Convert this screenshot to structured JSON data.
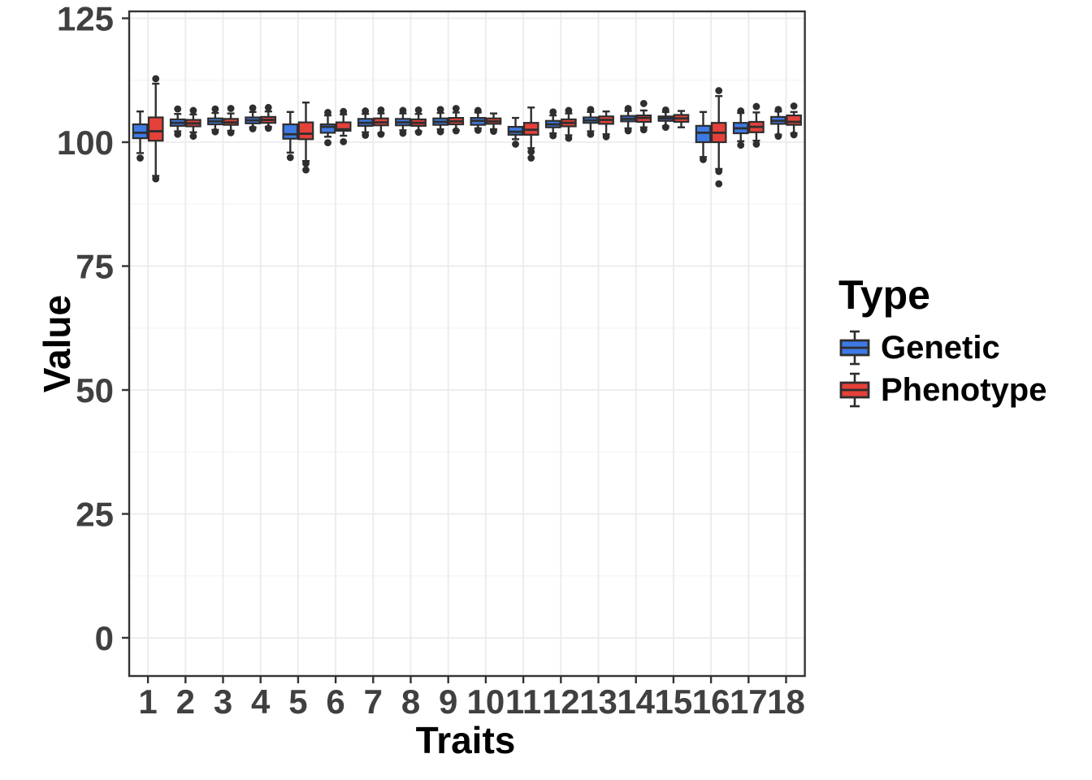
{
  "chart_data": {
    "type": "boxplot",
    "title": "",
    "xlabel": "Traits",
    "ylabel": "Value",
    "categories": [
      "1",
      "2",
      "3",
      "4",
      "5",
      "6",
      "7",
      "8",
      "9",
      "10",
      "11",
      "12",
      "13",
      "14",
      "15",
      "16",
      "17",
      "18"
    ],
    "yticks": [
      "0",
      "25",
      "50",
      "75",
      "100",
      "125"
    ],
    "ytick_values": [
      0,
      25,
      50,
      75,
      100,
      125
    ],
    "ylim": [
      -7,
      128
    ],
    "grid": "major-and-minor",
    "legend": {
      "title": "Type",
      "position": "right",
      "entries": [
        {
          "label": "Genetic",
          "color": "#3E7AE4"
        },
        {
          "label": "Phenotype",
          "color": "#E4413A"
        }
      ]
    },
    "colors": {
      "genetic_fill": "#3E7AE4",
      "phenotype_fill": "#E4413A",
      "box_border": "#2E2E2E",
      "outlier": "#2E2E2E",
      "grid_major": "#EBEBEB",
      "grid_minor": "#F4F4F4",
      "panel_border": "#333333",
      "tick_label": "#404040",
      "panel_bg": "#FFFFFF"
    },
    "series": [
      {
        "name": "Genetic",
        "boxes": [
          {
            "whislo": 97.8,
            "q1": 100.8,
            "med": 101.9,
            "q3": 103.6,
            "whishi": 106.2,
            "outliers": [
              96.8
            ]
          },
          {
            "whislo": 102.2,
            "q1": 103.3,
            "med": 103.9,
            "q3": 104.6,
            "whishi": 105.7,
            "outliers": [
              106.7,
              101.6
            ]
          },
          {
            "whislo": 102.5,
            "q1": 103.6,
            "med": 104.2,
            "q3": 104.8,
            "whishi": 105.9,
            "outliers": [
              106.7,
              102.1
            ]
          },
          {
            "whislo": 103.0,
            "q1": 103.8,
            "med": 104.4,
            "q3": 105.0,
            "whishi": 106.1,
            "outliers": [
              106.9,
              102.7
            ]
          },
          {
            "whislo": 97.9,
            "q1": 100.7,
            "med": 101.6,
            "q3": 103.6,
            "whishi": 106.1,
            "outliers": [
              96.9
            ]
          },
          {
            "whislo": 101.1,
            "q1": 101.9,
            "med": 103.1,
            "q3": 103.6,
            "whishi": 105.4,
            "outliers": [
              106.0,
              99.9
            ]
          },
          {
            "whislo": 102.0,
            "q1": 103.3,
            "med": 103.9,
            "q3": 104.7,
            "whishi": 105.7,
            "outliers": [
              106.3,
              101.4
            ]
          },
          {
            "whislo": 102.4,
            "q1": 103.4,
            "med": 104.0,
            "q3": 104.7,
            "whishi": 105.8,
            "outliers": [
              106.4,
              101.8
            ]
          },
          {
            "whislo": 102.6,
            "q1": 103.5,
            "med": 104.1,
            "q3": 104.8,
            "whishi": 105.9,
            "outliers": [
              106.6,
              102.1
            ]
          },
          {
            "whislo": 102.8,
            "q1": 103.5,
            "med": 104.3,
            "q3": 104.9,
            "whishi": 106.0,
            "outliers": [
              106.4,
              102.4
            ]
          },
          {
            "whislo": 100.6,
            "q1": 101.5,
            "med": 102.1,
            "q3": 103.1,
            "whishi": 104.9,
            "outliers": [
              99.6
            ]
          },
          {
            "whislo": 101.8,
            "q1": 103.0,
            "med": 103.6,
            "q3": 104.3,
            "whishi": 105.4,
            "outliers": [
              106.1,
              101.3
            ]
          },
          {
            "whislo": 102.2,
            "q1": 103.9,
            "med": 104.4,
            "q3": 105.0,
            "whishi": 106.1,
            "outliers": [
              106.6,
              101.6
            ]
          },
          {
            "whislo": 102.8,
            "q1": 104.2,
            "med": 104.7,
            "q3": 105.3,
            "whishi": 106.3,
            "outliers": [
              106.8,
              102.3
            ]
          },
          {
            "whislo": 103.2,
            "q1": 104.3,
            "med": 104.8,
            "q3": 105.2,
            "whishi": 106.1,
            "outliers": [
              106.5,
              103.0
            ]
          },
          {
            "whislo": 97.0,
            "q1": 100.0,
            "med": 101.9,
            "q3": 103.3,
            "whishi": 106.1,
            "outliers": [
              96.5
            ]
          },
          {
            "whislo": 100.2,
            "q1": 101.8,
            "med": 102.8,
            "q3": 103.9,
            "whishi": 105.9,
            "outliers": [
              106.3,
              99.4
            ]
          },
          {
            "whislo": 101.5,
            "q1": 103.7,
            "med": 104.3,
            "q3": 105.1,
            "whishi": 106.2,
            "outliers": [
              106.6,
              101.2
            ]
          }
        ]
      },
      {
        "name": "Phenotype",
        "boxes": [
          {
            "whislo": 93.2,
            "q1": 100.3,
            "med": 102.2,
            "q3": 105.0,
            "whishi": 111.8,
            "outliers": [
              112.8,
              92.6
            ]
          },
          {
            "whislo": 102.0,
            "q1": 103.2,
            "med": 103.8,
            "q3": 104.5,
            "whishi": 105.6,
            "outliers": [
              106.4,
              101.2
            ]
          },
          {
            "whislo": 102.3,
            "q1": 103.5,
            "med": 104.0,
            "q3": 104.7,
            "whishi": 105.8,
            "outliers": [
              106.8,
              101.9
            ]
          },
          {
            "whislo": 103.1,
            "q1": 103.9,
            "med": 104.5,
            "q3": 105.1,
            "whishi": 106.2,
            "outliers": [
              107.0,
              102.8
            ]
          },
          {
            "whislo": 96.2,
            "q1": 100.6,
            "med": 101.7,
            "q3": 104.0,
            "whishi": 108.0,
            "outliers": [
              95.7,
              94.4
            ]
          },
          {
            "whislo": 101.3,
            "q1": 102.3,
            "med": 102.6,
            "q3": 104.0,
            "whishi": 105.6,
            "outliers": [
              106.2,
              100.1
            ]
          },
          {
            "whislo": 101.8,
            "q1": 103.4,
            "med": 104.0,
            "q3": 104.8,
            "whishi": 105.8,
            "outliers": [
              106.5,
              101.6
            ]
          },
          {
            "whislo": 102.2,
            "q1": 103.3,
            "med": 103.9,
            "q3": 104.6,
            "whishi": 105.7,
            "outliers": [
              106.5,
              102.0
            ]
          },
          {
            "whislo": 102.4,
            "q1": 103.6,
            "med": 104.2,
            "q3": 104.9,
            "whishi": 106.0,
            "outliers": [
              106.8,
              102.3
            ]
          },
          {
            "whislo": 102.6,
            "q1": 103.7,
            "med": 104.2,
            "q3": 104.8,
            "whishi": 105.8,
            "outliers": [
              102.2
            ]
          },
          {
            "whislo": 98.8,
            "q1": 101.5,
            "med": 102.5,
            "q3": 103.9,
            "whishi": 107.0,
            "outliers": [
              98.1,
              96.8
            ]
          },
          {
            "whislo": 101.4,
            "q1": 103.2,
            "med": 103.9,
            "q3": 104.6,
            "whishi": 105.8,
            "outliers": [
              106.4,
              100.8
            ]
          },
          {
            "whislo": 101.6,
            "q1": 103.7,
            "med": 104.5,
            "q3": 105.2,
            "whishi": 106.2,
            "outliers": [
              101.1
            ]
          },
          {
            "whislo": 103.0,
            "q1": 104.1,
            "med": 104.9,
            "q3": 105.4,
            "whishi": 106.4,
            "outliers": [
              107.8,
              102.5
            ]
          },
          {
            "whislo": 103.0,
            "q1": 104.1,
            "med": 104.8,
            "q3": 105.5,
            "whishi": 106.3,
            "outliers": []
          },
          {
            "whislo": 94.6,
            "q1": 100.0,
            "med": 101.9,
            "q3": 103.9,
            "whishi": 109.3,
            "outliers": [
              110.4,
              94.1,
              91.6
            ]
          },
          {
            "whislo": 100.3,
            "q1": 102.0,
            "med": 103.1,
            "q3": 104.1,
            "whishi": 106.0,
            "outliers": [
              107.2,
              99.6
            ]
          },
          {
            "whislo": 101.8,
            "q1": 103.5,
            "med": 104.1,
            "q3": 105.4,
            "whishi": 106.1,
            "outliers": [
              107.3,
              101.5
            ]
          }
        ]
      }
    ]
  }
}
